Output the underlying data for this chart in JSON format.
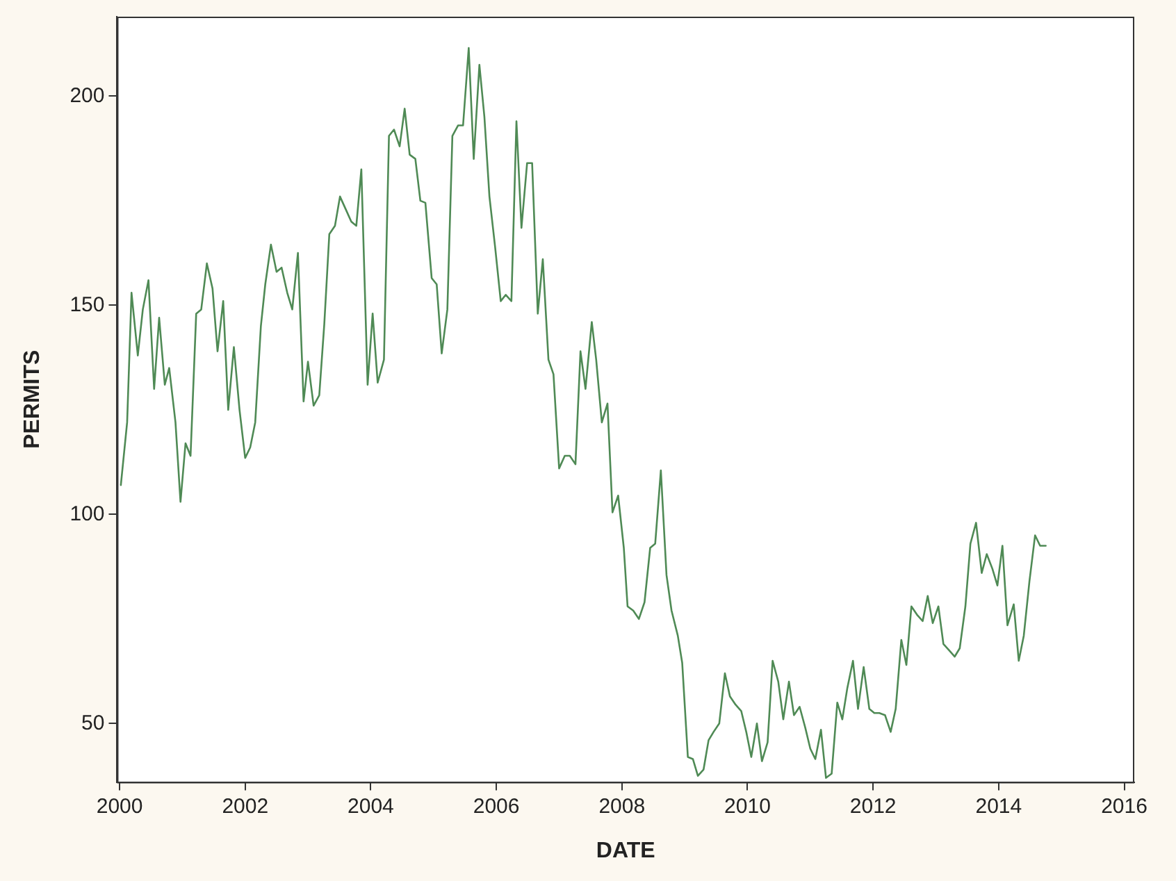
{
  "chart_data": {
    "type": "line",
    "xlabel": "DATE",
    "ylabel": "PERMITS",
    "xlim": [
      1999.96,
      2016.16
    ],
    "xticks": [
      2000,
      2002,
      2004,
      2006,
      2008,
      2010,
      2012,
      2014,
      2016
    ],
    "ylim": [
      36,
      219
    ],
    "yticks": [
      50,
      100,
      150,
      200
    ],
    "grid": false,
    "legend": false,
    "marker": "none",
    "line_style": "solid",
    "x": [
      2000.02,
      2000.12,
      2000.19,
      2000.29,
      2000.37,
      2000.46,
      2000.55,
      2000.63,
      2000.72,
      2000.79,
      2000.89,
      2000.97,
      2001.05,
      2001.13,
      2001.22,
      2001.3,
      2001.39,
      2001.48,
      2001.56,
      2001.65,
      2001.73,
      2001.82,
      2001.91,
      2002.0,
      2002.08,
      2002.16,
      2002.25,
      2002.32,
      2002.41,
      2002.5,
      2002.58,
      2002.67,
      2002.75,
      2002.84,
      2002.93,
      2003.0,
      2003.09,
      2003.18,
      2003.26,
      2003.34,
      2003.43,
      2003.51,
      2003.6,
      2003.69,
      2003.77,
      2003.85,
      2003.95,
      2004.03,
      2004.11,
      2004.21,
      2004.29,
      2004.37,
      2004.46,
      2004.54,
      2004.62,
      2004.71,
      2004.79,
      2004.87,
      2004.97,
      2005.05,
      2005.13,
      2005.22,
      2005.3,
      2005.39,
      2005.47,
      2005.56,
      2005.64,
      2005.73,
      2005.81,
      2005.89,
      2005.98,
      2006.07,
      2006.15,
      2006.24,
      2006.32,
      2006.4,
      2006.49,
      2006.57,
      2006.66,
      2006.74,
      2006.83,
      2006.91,
      2007.0,
      2007.09,
      2007.17,
      2007.26,
      2007.34,
      2007.42,
      2007.52,
      2007.59,
      2007.68,
      2007.77,
      2007.85,
      2007.94,
      2008.03,
      2008.09,
      2008.18,
      2008.27,
      2008.36,
      2008.45,
      2008.53,
      2008.62,
      2008.71,
      2008.79,
      2008.89,
      2008.96,
      2009.05,
      2009.13,
      2009.21,
      2009.3,
      2009.38,
      2009.46,
      2009.55,
      2009.64,
      2009.72,
      2009.81,
      2009.9,
      2009.98,
      2010.06,
      2010.15,
      2010.23,
      2010.32,
      2010.4,
      2010.49,
      2010.57,
      2010.66,
      2010.74,
      2010.83,
      2010.92,
      2011.0,
      2011.08,
      2011.17,
      2011.25,
      2011.34,
      2011.43,
      2011.51,
      2011.59,
      2011.68,
      2011.76,
      2011.85,
      2011.94,
      2012.02,
      2012.1,
      2012.19,
      2012.28,
      2012.36,
      2012.45,
      2012.53,
      2012.61,
      2012.7,
      2012.79,
      2012.87,
      2012.95,
      2013.04,
      2013.12,
      2013.21,
      2013.3,
      2013.38,
      2013.47,
      2013.55,
      2013.64,
      2013.73,
      2013.81,
      2013.9,
      2013.98,
      2014.06,
      2014.14,
      2014.24,
      2014.32,
      2014.4,
      2014.49,
      2014.58,
      2014.66,
      2014.75
    ],
    "series": [
      {
        "color": "#4f8a55",
        "values": [
          107,
          122,
          153,
          138,
          149,
          156,
          130,
          147,
          131,
          135,
          122,
          103,
          117,
          114,
          148,
          149,
          160,
          154,
          139,
          151,
          125,
          140,
          125,
          113.5,
          116,
          122,
          145,
          155,
          164.5,
          158,
          159,
          153,
          149,
          162.5,
          127,
          136.5,
          126,
          128.5,
          145.5,
          167,
          169,
          176,
          173,
          170,
          169,
          182.5,
          131,
          148,
          131.5,
          137,
          190.5,
          192,
          188,
          197,
          186,
          185,
          175,
          174.5,
          156.5,
          155,
          138.5,
          149,
          190.5,
          193,
          193,
          211.5,
          185,
          207.5,
          195,
          176,
          164,
          151,
          152.5,
          151,
          194,
          168.5,
          184,
          184,
          148,
          161,
          137,
          133.5,
          111,
          114,
          114,
          112,
          139,
          130,
          146,
          137,
          122,
          126.5,
          100.5,
          104.5,
          92,
          78,
          77,
          75,
          79,
          92,
          93,
          110.5,
          85.5,
          77,
          71,
          64.5,
          42,
          41.5,
          37.5,
          39,
          46,
          48,
          50,
          62,
          56.5,
          54.5,
          53,
          48,
          42,
          50,
          41,
          45.5,
          65,
          60,
          51,
          60,
          52,
          54,
          49,
          44,
          41.5,
          48.5,
          37,
          38,
          55,
          51,
          58.5,
          65,
          53.5,
          63.5,
          53.5,
          52.5,
          52.5,
          52,
          48,
          53.5,
          70,
          64,
          78,
          76,
          74.5,
          80.5,
          74,
          78,
          69,
          67.5,
          66,
          68,
          78,
          93,
          98,
          86,
          90.5,
          87,
          83,
          92.5,
          73.5,
          78.5,
          65,
          71,
          84,
          95,
          92.5,
          92.5
        ]
      }
    ]
  }
}
